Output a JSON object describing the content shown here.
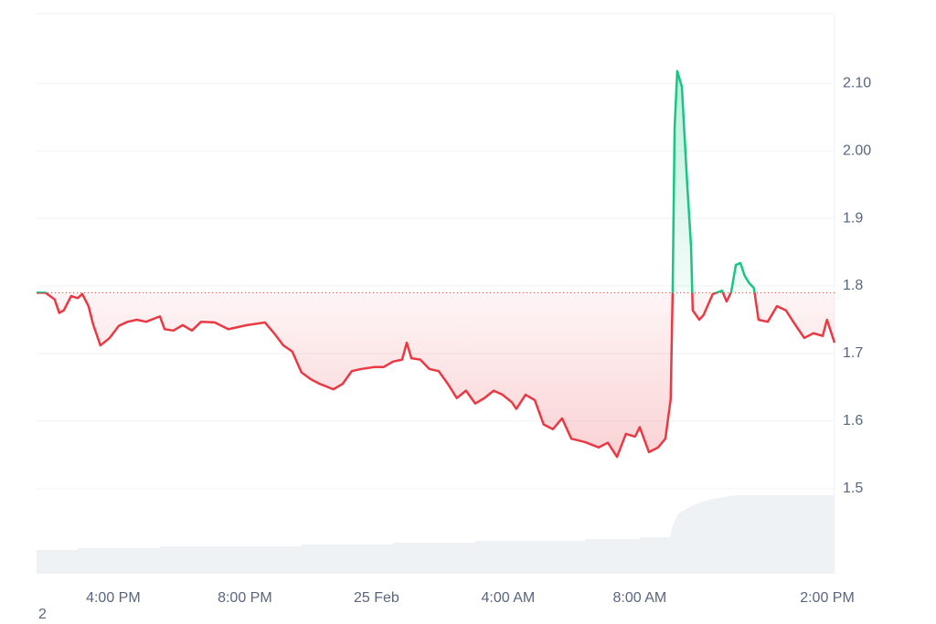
{
  "chart_data": {
    "type": "line",
    "x": [
      13.67,
      13.94,
      14.22,
      14.36,
      14.5,
      14.72,
      14.92,
      15.06,
      15.25,
      15.39,
      15.61,
      15.89,
      16.17,
      16.44,
      16.72,
      17.0,
      17.42,
      17.56,
      17.83,
      18.11,
      18.39,
      18.67,
      19.08,
      19.5,
      20.06,
      20.61,
      20.89,
      21.17,
      21.44,
      21.72,
      22.0,
      22.28,
      22.69,
      22.97,
      23.25,
      23.53,
      23.94,
      24.22,
      24.5,
      24.78,
      24.92,
      25.06,
      25.33,
      25.61,
      25.89,
      26.17,
      26.44,
      26.72,
      27.0,
      27.28,
      27.56,
      27.83,
      28.11,
      28.25,
      28.53,
      28.81,
      29.08,
      29.36,
      29.64,
      29.92,
      30.33,
      30.75,
      31.03,
      31.31,
      31.58,
      31.86,
      32.0,
      32.28,
      32.56,
      32.78,
      32.94,
      33.0,
      33.06,
      33.14,
      33.28,
      33.44,
      33.56,
      33.61,
      33.81,
      33.94,
      34.22,
      34.5,
      34.64,
      34.78,
      34.92,
      35.06,
      35.19,
      35.33,
      35.47,
      35.61,
      35.89,
      36.17,
      36.44,
      36.72,
      37.0,
      37.28,
      37.56,
      37.69,
      37.92
    ],
    "values": [
      1.79,
      1.79,
      1.78,
      1.76,
      1.764,
      1.785,
      1.782,
      1.788,
      1.77,
      1.743,
      1.712,
      1.723,
      1.741,
      1.747,
      1.75,
      1.747,
      1.755,
      1.736,
      1.734,
      1.742,
      1.734,
      1.747,
      1.746,
      1.736,
      1.742,
      1.746,
      1.73,
      1.712,
      1.703,
      1.672,
      1.662,
      1.655,
      1.647,
      1.655,
      1.674,
      1.677,
      1.68,
      1.68,
      1.688,
      1.691,
      1.716,
      1.693,
      1.691,
      1.677,
      1.674,
      1.655,
      1.634,
      1.645,
      1.626,
      1.634,
      1.645,
      1.639,
      1.628,
      1.618,
      1.639,
      1.631,
      1.595,
      1.588,
      1.604,
      1.574,
      1.569,
      1.561,
      1.568,
      1.547,
      1.581,
      1.577,
      1.591,
      1.554,
      1.561,
      1.574,
      1.632,
      1.79,
      2.034,
      2.118,
      2.095,
      1.953,
      1.858,
      1.764,
      1.75,
      1.757,
      1.788,
      1.793,
      1.777,
      1.791,
      1.831,
      1.834,
      1.815,
      1.804,
      1.797,
      1.75,
      1.747,
      1.77,
      1.764,
      1.743,
      1.723,
      1.73,
      1.726,
      1.75,
      1.716
    ],
    "baseline": 1.79,
    "up_color": "#16c784",
    "down_color": "#ea3943",
    "xlim": [
      13.67,
      37.92
    ],
    "xticks": [
      {
        "value": 16,
        "label": "4:00 PM"
      },
      {
        "value": 20,
        "label": "8:00 PM"
      },
      {
        "value": 24,
        "label": "25 Feb"
      },
      {
        "value": 28,
        "label": "4:00 AM"
      },
      {
        "value": 32,
        "label": "8:00 AM"
      },
      {
        "value": 38,
        "label": "2:00 PM"
      }
    ],
    "ylim": [
      1.374,
      2.203
    ],
    "yticks": [
      1.5,
      1.6,
      1.7,
      1.8,
      1.9,
      {
        "value": 2.0,
        "label": "2.00"
      },
      {
        "value": 2.1,
        "label": "2.10"
      }
    ],
    "grid": true,
    "footnote": "2"
  }
}
